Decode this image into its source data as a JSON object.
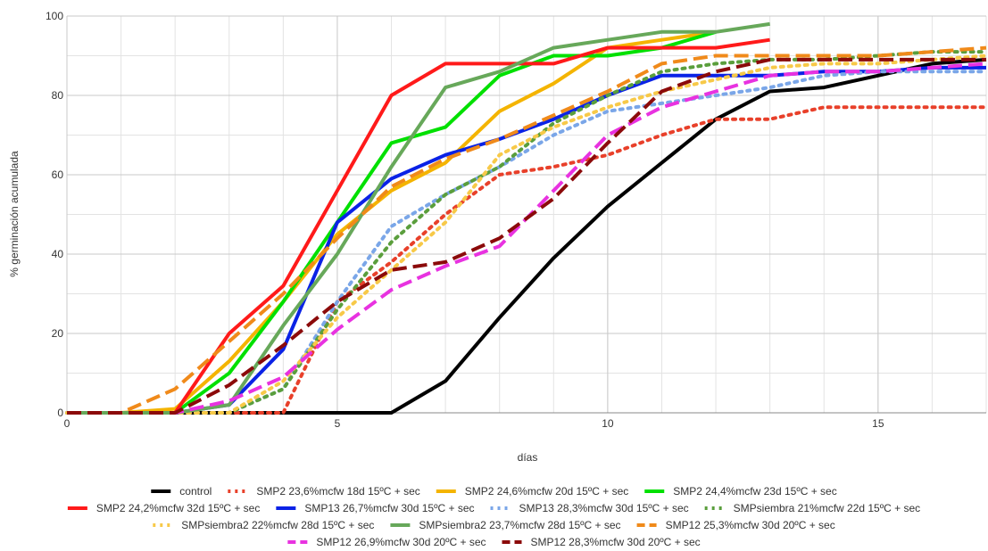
{
  "chart_data": {
    "type": "line",
    "title": "",
    "xlabel": "días",
    "ylabel": "% germinación acumulada",
    "xlim": [
      0,
      17
    ],
    "ylim": [
      0,
      100
    ],
    "x_ticks": [
      "0",
      "5",
      "10",
      "15"
    ],
    "y_ticks": [
      "0",
      "20",
      "40",
      "60",
      "80",
      "100"
    ],
    "grid": true,
    "legend_position": "bottom",
    "series": [
      {
        "name": "control",
        "color": "#000000",
        "style": "solid",
        "x": [
          0,
          1,
          2,
          3,
          4,
          5,
          6,
          7,
          8,
          9,
          10,
          11,
          12,
          13,
          14,
          15,
          16,
          17
        ],
        "y": [
          0,
          0,
          0,
          0,
          0,
          0,
          0,
          8,
          24,
          39,
          52,
          63,
          74,
          81,
          82,
          85,
          88,
          89
        ]
      },
      {
        "name": "SMP2 23,6%mcfw 18d 15ºC + sec",
        "color": "#e8402a",
        "style": "dotted",
        "x": [
          0,
          1,
          2,
          3,
          4,
          5,
          6,
          7,
          8,
          9,
          10,
          11,
          12,
          13,
          14,
          15,
          16,
          17
        ],
        "y": [
          0,
          0,
          0,
          0,
          0,
          28,
          38,
          50,
          60,
          62,
          65,
          70,
          74,
          74,
          77,
          77,
          77,
          77
        ]
      },
      {
        "name": "SMP2 24,6%mcfw 20d 15ºC + sec",
        "color": "#f4b400",
        "style": "solid",
        "x": [
          0,
          1,
          2,
          3,
          4,
          5,
          6,
          7,
          8,
          9,
          10,
          11,
          12
        ],
        "y": [
          0,
          0,
          1,
          13,
          28,
          45,
          56,
          63,
          76,
          83,
          92,
          94,
          96
        ]
      },
      {
        "name": "SMP2 24,4%mcfw 23d 15ºC  + sec",
        "color": "#00e000",
        "style": "solid",
        "x": [
          0,
          1,
          2,
          3,
          4,
          5,
          6,
          7,
          8,
          9,
          10,
          11,
          12
        ],
        "y": [
          0,
          0,
          0,
          10,
          28,
          48,
          68,
          72,
          85,
          90,
          90,
          92,
          96
        ]
      },
      {
        "name": "SMP2 24,2%mcfw 32d 15ºC  + sec",
        "color": "#ff1a1a",
        "style": "solid",
        "x": [
          0,
          1,
          2,
          3,
          4,
          5,
          6,
          7,
          8,
          9,
          10,
          11,
          12,
          13
        ],
        "y": [
          0,
          0,
          0,
          20,
          32,
          56,
          80,
          88,
          88,
          88,
          92,
          92,
          92,
          94
        ]
      },
      {
        "name": "SMP13 26,7%mcfw 30d 15ºC + sec",
        "color": "#0a22e6",
        "style": "solid",
        "x": [
          0,
          1,
          2,
          3,
          4,
          5,
          6,
          7,
          8,
          9,
          10,
          11,
          12,
          13,
          14,
          15,
          16,
          17
        ],
        "y": [
          0,
          0,
          0,
          2,
          16,
          48,
          59,
          65,
          69,
          74,
          80,
          85,
          85,
          85,
          86,
          86,
          87,
          87
        ]
      },
      {
        "name": "SMP13 28,3%mcfw 30d 15ºC + sec",
        "color": "#7aa6e8",
        "style": "dotted",
        "x": [
          0,
          1,
          2,
          3,
          4,
          5,
          6,
          7,
          8,
          9,
          10,
          11,
          12,
          13,
          14,
          15,
          16,
          17
        ],
        "y": [
          0,
          0,
          0,
          0,
          6,
          28,
          47,
          55,
          62,
          70,
          76,
          78,
          80,
          82,
          85,
          86,
          86,
          86
        ]
      },
      {
        "name": "SMPsiembra 21%mcfw 22d 15ºC + sec",
        "color": "#5a9e3c",
        "style": "dotted",
        "x": [
          0,
          1,
          2,
          3,
          4,
          5,
          6,
          7,
          8,
          9,
          10,
          11,
          12,
          13,
          14,
          15,
          16,
          17
        ],
        "y": [
          0,
          0,
          0,
          0,
          6,
          26,
          43,
          55,
          62,
          73,
          80,
          86,
          88,
          89,
          89,
          90,
          91,
          91
        ]
      },
      {
        "name": "SMPsiembra2 22%mcfw 28d 15ºC + sec",
        "color": "#f7c948",
        "style": "dotted",
        "x": [
          0,
          1,
          2,
          3,
          4,
          5,
          6,
          7,
          8,
          9,
          10,
          11,
          12,
          13,
          14,
          15,
          16,
          17
        ],
        "y": [
          0,
          0,
          0,
          0,
          8,
          24,
          36,
          48,
          65,
          72,
          77,
          81,
          84,
          87,
          88,
          88,
          89,
          90
        ]
      },
      {
        "name": "SMPsiembra2 23,7%mcfw 28d 15ºC + sec",
        "color": "#67a85a",
        "style": "solid",
        "x": [
          0,
          1,
          2,
          3,
          4,
          5,
          6,
          7,
          8,
          9,
          10,
          11,
          12,
          13
        ],
        "y": [
          0,
          0,
          0,
          2,
          22,
          40,
          62,
          82,
          86,
          92,
          94,
          96,
          96,
          98
        ]
      },
      {
        "name": "SMP12 25,3%mcfw 30d 20ºC + sec",
        "color": "#f08a1a",
        "style": "dashed",
        "x": [
          0,
          1,
          2,
          3,
          4,
          5,
          6,
          7,
          8,
          9,
          10,
          11,
          12,
          13,
          14,
          15,
          16,
          17
        ],
        "y": [
          0,
          0,
          6,
          18,
          30,
          44,
          57,
          64,
          69,
          75,
          81,
          88,
          90,
          90,
          90,
          90,
          91,
          92
        ]
      },
      {
        "name": "SMP12 26,9%mcfw 30d 20ºC + sec",
        "color": "#e832e0",
        "style": "dashed",
        "x": [
          0,
          1,
          2,
          3,
          4,
          5,
          6,
          7,
          8,
          9,
          10,
          11,
          12,
          13,
          14,
          15,
          16,
          17
        ],
        "y": [
          0,
          0,
          0,
          3,
          9,
          21,
          31,
          37,
          42,
          56,
          70,
          77,
          81,
          85,
          86,
          86,
          87,
          88
        ]
      },
      {
        "name": "SMP12 28,3%mcfw 30d 20ºC + sec",
        "color": "#8b0a0a",
        "style": "dashed",
        "x": [
          0,
          1,
          2,
          3,
          4,
          5,
          6,
          7,
          8,
          9,
          10,
          11,
          12,
          13,
          14,
          15,
          16,
          17
        ],
        "y": [
          0,
          0,
          0,
          7,
          17,
          28,
          36,
          38,
          44,
          54,
          68,
          81,
          86,
          89,
          89,
          89,
          89,
          89
        ]
      }
    ]
  }
}
